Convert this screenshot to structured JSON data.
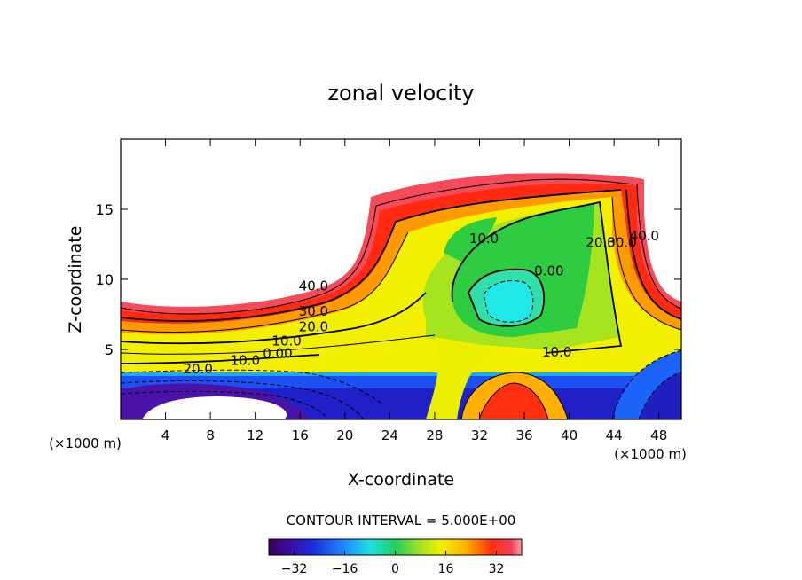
{
  "chart_data": {
    "type": "heatmap",
    "title": "zonal velocity",
    "xlabel": "X-coordinate",
    "ylabel": "Z-coordinate",
    "x_unit_left": "(×1000 m)",
    "x_unit_right": "(×1000 m)",
    "xlim": [
      0,
      50
    ],
    "ylim": [
      0,
      20
    ],
    "x_ticks": [
      4,
      8,
      12,
      16,
      20,
      24,
      28,
      32,
      36,
      40,
      44,
      48
    ],
    "y_ticks": [
      5,
      10,
      15
    ],
    "contour_interval_text": "CONTOUR INTERVAL = 5.000E+00",
    "colorbar": {
      "range": [
        -40,
        40
      ],
      "tick_values": [
        -32,
        -16,
        0,
        16,
        32
      ],
      "tick_labels": [
        "−32",
        "−16",
        "0",
        "16",
        "32"
      ]
    },
    "contour_labels": [
      {
        "text": "40.0",
        "x": 17.2,
        "y": 9.2
      },
      {
        "text": "30.0",
        "x": 17.2,
        "y": 7.4
      },
      {
        "text": "20.0",
        "x": 17.2,
        "y": 6.3
      },
      {
        "text": "10.0",
        "x": 14.8,
        "y": 5.3
      },
      {
        "text": "0.00",
        "x": 14.0,
        "y": 4.4
      },
      {
        "text": "10.0",
        "x": 11.1,
        "y": 3.9
      },
      {
        "text": "20.0",
        "x": 6.9,
        "y": 3.3
      },
      {
        "text": "10.0",
        "x": 32.4,
        "y": 12.6
      },
      {
        "text": "0.00",
        "x": 38.2,
        "y": 10.3
      },
      {
        "text": "10.0",
        "x": 38.9,
        "y": 4.5
      },
      {
        "text": "20.0",
        "x": 42.8,
        "y": 12.3
      },
      {
        "text": "30.0",
        "x": 44.7,
        "y": 12.3
      },
      {
        "text": "40.0",
        "x": 46.7,
        "y": 12.8
      }
    ]
  }
}
